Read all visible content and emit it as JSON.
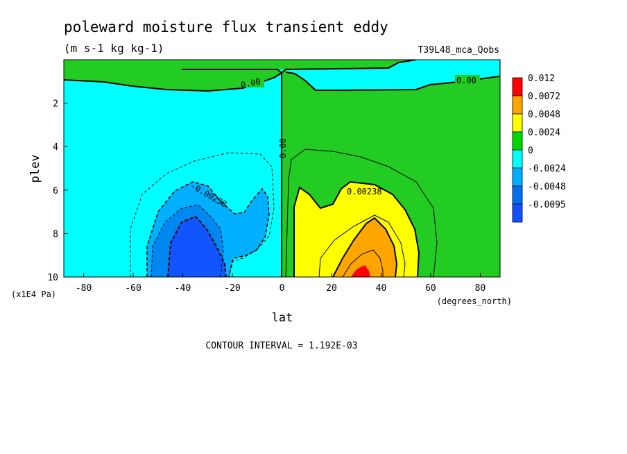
{
  "chart_data": {
    "type": "heatmap",
    "title": "poleward moisture flux transient eddy",
    "units": "(m s-1 kg kg-1)",
    "run_label": "T39L48_mca_Qobs",
    "xlabel": "lat",
    "xunits": "(degrees_north)",
    "ylabel": "plev",
    "yunits": "(x1E4 Pa)",
    "xlim": [
      -88,
      88
    ],
    "ylim": [
      0,
      10
    ],
    "y_reversed": true,
    "x_ticks": [
      "-80",
      "-60",
      "-40",
      "-20",
      "0",
      "20",
      "40",
      "60",
      "80"
    ],
    "y_ticks": [
      "2",
      "4",
      "6",
      "8",
      "10"
    ],
    "contour_interval_text": "CONTOUR INTERVAL = 1.192E-03",
    "contour_labels": [
      "0.00",
      "0.00",
      "0.00",
      "-0.00238",
      "0.00238"
    ],
    "colorbar": {
      "labels": [
        "0.012",
        "0.0072",
        "0.0048",
        "0.0024",
        "0",
        "-0.0024",
        "-0.0048",
        "-0.0095"
      ],
      "colors": [
        "#ff0000",
        "#ffa500",
        "#ffff00",
        "#00d900",
        "#00ffff",
        "#00b0ff",
        "#0070f0",
        "#1050ff"
      ]
    },
    "fill_colors": {
      "positive_low": "#22cc22",
      "negative_low": "#00ffff",
      "neg_1": "#00b0ff",
      "neg_2": "#0088f0",
      "neg_3": "#1155ff",
      "pos_1": "#ffff00",
      "pos_2": "#ffa500",
      "pos_3": "#ff0000"
    }
  }
}
